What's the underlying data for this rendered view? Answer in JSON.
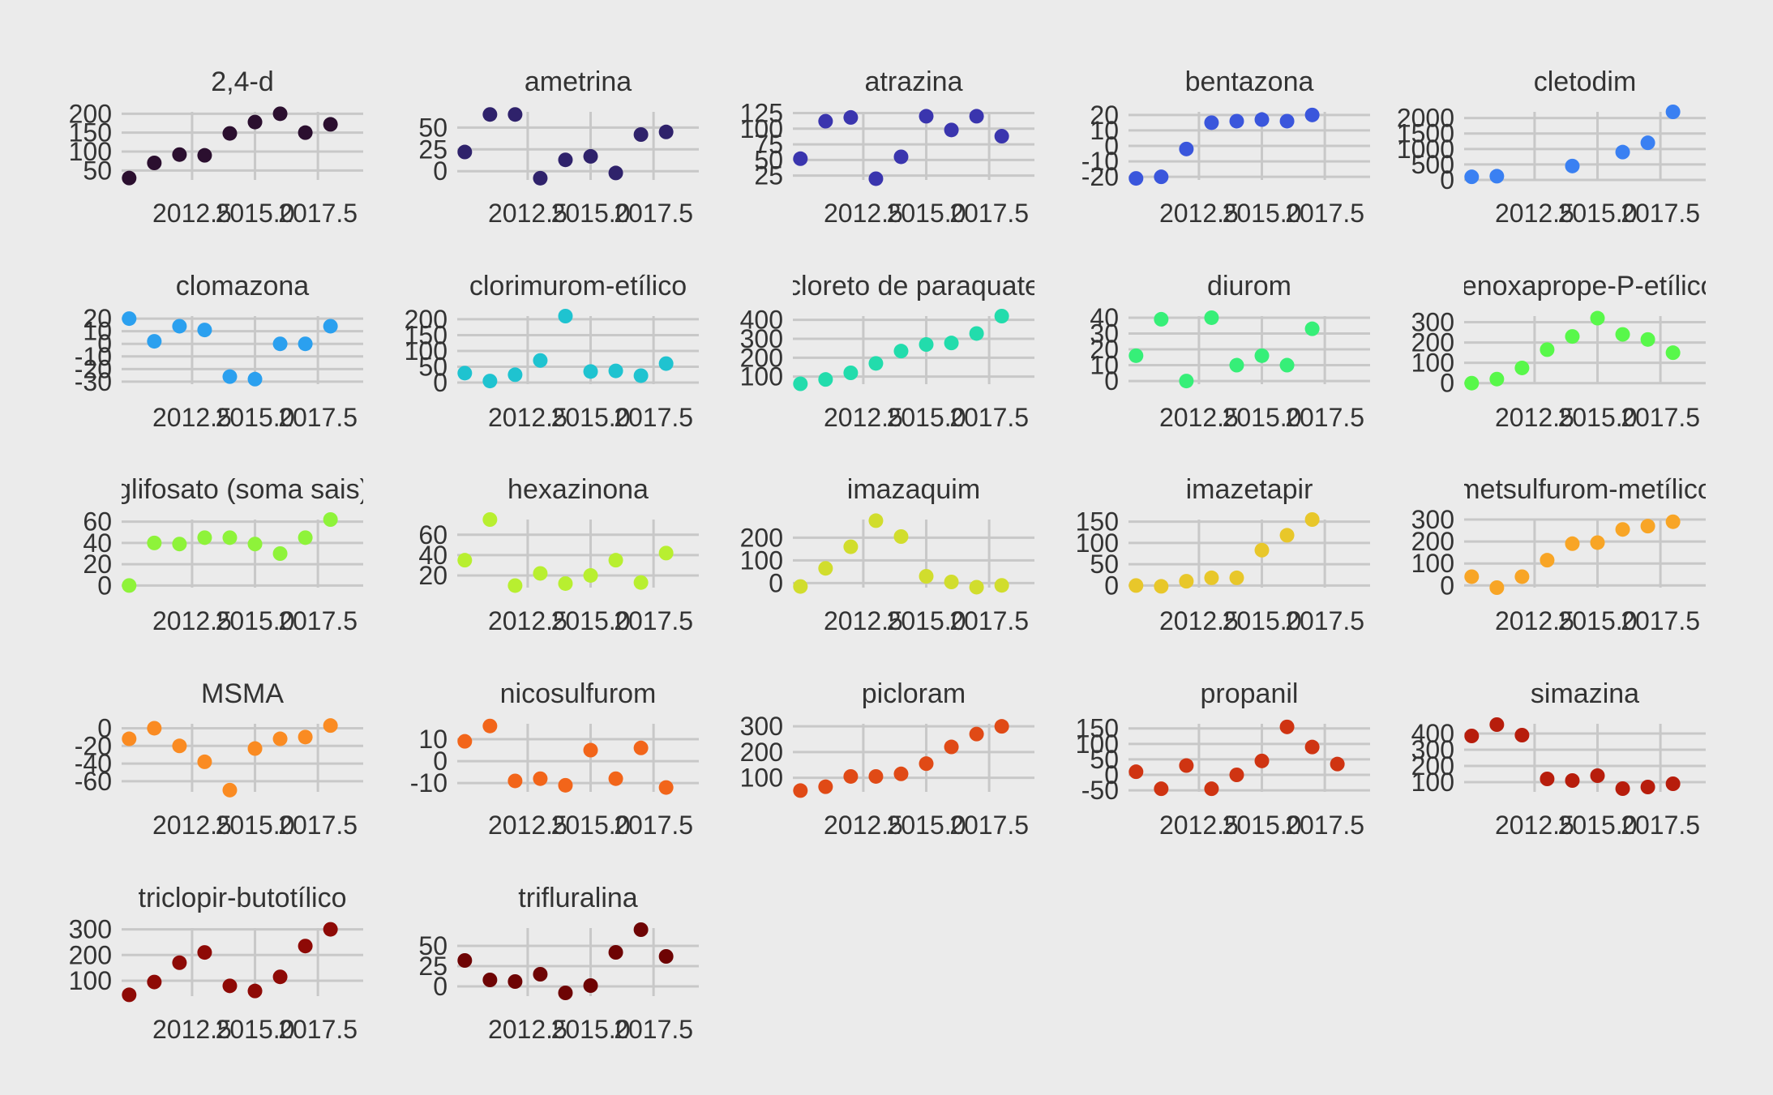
{
  "chart_data": {
    "type": "scatter",
    "layout": "faceted small multiples, 5 columns, free y scales",
    "grid": true,
    "legend": "none",
    "background": "#ebebeb",
    "gridline_color": "#c8c8c8",
    "text_color": "#333333",
    "x_range": [
      2009.7,
      2019.3
    ],
    "x_ticks": [
      2012.5,
      2015,
      2017.5
    ],
    "x_tick_labels": [
      "2012.5",
      "2015.0",
      "2017.5"
    ],
    "x_gridlines": [
      2012.5,
      2015,
      2017.5
    ],
    "years": [
      2010,
      2011,
      2012,
      2013,
      2014,
      2015,
      2016,
      2017,
      2018,
      2019
    ],
    "panels": [
      {
        "title": "2,4-d",
        "color": "#2b0f2f",
        "ylim": [
          25,
          205
        ],
        "yticks": [
          "50",
          "100",
          "150",
          "200"
        ],
        "ytick_values": [
          50,
          100,
          150,
          200
        ],
        "points": [
          [
            2010,
            30
          ],
          [
            2011,
            70
          ],
          [
            2012,
            92
          ],
          [
            2013,
            90
          ],
          [
            2014,
            148
          ],
          [
            2015,
            178
          ],
          [
            2016,
            200
          ],
          [
            2017,
            150
          ],
          [
            2018,
            172
          ]
        ]
      },
      {
        "title": "ametrina",
        "color": "#2f226b",
        "ylim": [
          -10,
          68
        ],
        "yticks": [
          "0",
          "25",
          "50"
        ],
        "ytick_values": [
          0,
          25,
          50
        ],
        "points": [
          [
            2010,
            22
          ],
          [
            2011,
            65
          ],
          [
            2012,
            65
          ],
          [
            2013,
            -8
          ],
          [
            2014,
            13
          ],
          [
            2015,
            17
          ],
          [
            2016,
            -2
          ],
          [
            2017,
            42
          ],
          [
            2018,
            45
          ]
        ]
      },
      {
        "title": "atrazina",
        "color": "#3a35ae",
        "ylim": [
          18,
          127
        ],
        "yticks": [
          "25",
          "50",
          "75",
          "100",
          "125"
        ],
        "ytick_values": [
          25,
          50,
          75,
          100,
          125
        ],
        "points": [
          [
            2010,
            52
          ],
          [
            2011,
            112
          ],
          [
            2012,
            118
          ],
          [
            2013,
            20
          ],
          [
            2014,
            55
          ],
          [
            2015,
            120
          ],
          [
            2016,
            98
          ],
          [
            2017,
            120
          ],
          [
            2018,
            88
          ]
        ]
      },
      {
        "title": "bentazona",
        "color": "#3a56dc",
        "ylim": [
          -22,
          22
        ],
        "yticks": [
          "-20",
          "-10",
          "0",
          "10",
          "20"
        ],
        "ytick_values": [
          -20,
          -10,
          0,
          10,
          20
        ],
        "points": [
          [
            2010,
            -21
          ],
          [
            2011,
            -20
          ],
          [
            2012,
            -2
          ],
          [
            2013,
            15
          ],
          [
            2014,
            16
          ],
          [
            2015,
            17
          ],
          [
            2016,
            16
          ],
          [
            2017,
            20
          ]
        ]
      },
      {
        "title": "cletodim",
        "color": "#3a80f2",
        "ylim": [
          0,
          2200
        ],
        "yticks": [
          "0",
          "500",
          "1000",
          "1500",
          "2000"
        ],
        "ytick_values": [
          0,
          500,
          1000,
          1500,
          2000
        ],
        "points": [
          [
            2010,
            100
          ],
          [
            2011,
            120
          ],
          [
            2014,
            450
          ],
          [
            2016,
            900
          ],
          [
            2017,
            1200
          ],
          [
            2018,
            2200
          ]
        ]
      },
      {
        "title": "clomazona",
        "color": "#2ba0ef",
        "ylim": [
          -32,
          22
        ],
        "yticks": [
          "-30",
          "-20",
          "-10",
          "0",
          "10",
          "20"
        ],
        "ytick_values": [
          -30,
          -20,
          -10,
          0,
          10,
          20
        ],
        "points": [
          [
            2010,
            20
          ],
          [
            2011,
            2
          ],
          [
            2012,
            14
          ],
          [
            2013,
            11
          ],
          [
            2014,
            -26
          ],
          [
            2015,
            -28
          ],
          [
            2016,
            0
          ],
          [
            2017,
            0
          ],
          [
            2018,
            14
          ]
        ]
      },
      {
        "title": "clorimurom-etílico",
        "color": "#1fc3d0",
        "ylim": [
          -5,
          210
        ],
        "yticks": [
          "0",
          "50",
          "100",
          "150",
          "200"
        ],
        "ytick_values": [
          0,
          50,
          100,
          150,
          200
        ],
        "points": [
          [
            2010,
            30
          ],
          [
            2011,
            5
          ],
          [
            2012,
            25
          ],
          [
            2013,
            70
          ],
          [
            2014,
            210
          ],
          [
            2015,
            35
          ],
          [
            2016,
            37
          ],
          [
            2017,
            22
          ],
          [
            2018,
            60
          ]
        ]
      },
      {
        "title": "cloreto de paraquate",
        "color": "#22dcac",
        "ylim": [
          60,
          420
        ],
        "yticks": [
          "100",
          "200",
          "300",
          "400"
        ],
        "ytick_values": [
          100,
          200,
          300,
          400
        ],
        "points": [
          [
            2010,
            62
          ],
          [
            2011,
            85
          ],
          [
            2012,
            120
          ],
          [
            2013,
            170
          ],
          [
            2014,
            235
          ],
          [
            2015,
            270
          ],
          [
            2016,
            278
          ],
          [
            2017,
            328
          ],
          [
            2018,
            420
          ]
        ]
      },
      {
        "title": "diurom",
        "color": "#36ef78",
        "ylim": [
          -2,
          41
        ],
        "yticks": [
          "0",
          "10",
          "20",
          "30",
          "40"
        ],
        "ytick_values": [
          0,
          10,
          20,
          30,
          40
        ],
        "points": [
          [
            2010,
            16
          ],
          [
            2011,
            39
          ],
          [
            2012,
            0
          ],
          [
            2013,
            40
          ],
          [
            2014,
            10
          ],
          [
            2015,
            16
          ],
          [
            2016,
            10
          ],
          [
            2017,
            33
          ]
        ]
      },
      {
        "title": "fenoxaprope-P-etílico",
        "color": "#58f84a",
        "ylim": [
          -5,
          330
        ],
        "yticks": [
          "0",
          "100",
          "200",
          "300"
        ],
        "ytick_values": [
          0,
          100,
          200,
          300
        ],
        "points": [
          [
            2010,
            0
          ],
          [
            2011,
            20
          ],
          [
            2012,
            75
          ],
          [
            2013,
            165
          ],
          [
            2014,
            230
          ],
          [
            2015,
            320
          ],
          [
            2016,
            240
          ],
          [
            2017,
            215
          ],
          [
            2018,
            150
          ]
        ]
      },
      {
        "title": "glifosato (soma sais)",
        "color": "#8ef33a",
        "ylim": [
          -2,
          62
        ],
        "yticks": [
          "0",
          "20",
          "40",
          "60"
        ],
        "ytick_values": [
          0,
          20,
          40,
          60
        ],
        "points": [
          [
            2010,
            0
          ],
          [
            2011,
            40
          ],
          [
            2012,
            39
          ],
          [
            2013,
            45
          ],
          [
            2014,
            45
          ],
          [
            2015,
            39
          ],
          [
            2016,
            30
          ],
          [
            2017,
            45
          ],
          [
            2018,
            62
          ]
        ]
      },
      {
        "title": "hexazinona",
        "color": "#b8ef30",
        "ylim": [
          8,
          75
        ],
        "yticks": [
          "20",
          "40",
          "60"
        ],
        "ytick_values": [
          20,
          40,
          60
        ],
        "points": [
          [
            2010,
            35
          ],
          [
            2011,
            75
          ],
          [
            2012,
            10
          ],
          [
            2013,
            22
          ],
          [
            2014,
            12
          ],
          [
            2015,
            20
          ],
          [
            2016,
            35
          ],
          [
            2017,
            13
          ],
          [
            2018,
            42
          ]
        ]
      },
      {
        "title": "imazaquim",
        "color": "#d1dd2d",
        "ylim": [
          -20,
          280
        ],
        "yticks": [
          "0",
          "100",
          "200"
        ],
        "ytick_values": [
          0,
          100,
          200
        ],
        "points": [
          [
            2010,
            -15
          ],
          [
            2011,
            65
          ],
          [
            2012,
            160
          ],
          [
            2013,
            275
          ],
          [
            2014,
            205
          ],
          [
            2015,
            30
          ],
          [
            2016,
            5
          ],
          [
            2017,
            -18
          ],
          [
            2018,
            -10
          ]
        ]
      },
      {
        "title": "imazetapir",
        "color": "#e8c72a",
        "ylim": [
          -5,
          155
        ],
        "yticks": [
          "0",
          "50",
          "100",
          "150"
        ],
        "ytick_values": [
          0,
          50,
          100,
          150
        ],
        "points": [
          [
            2010,
            0
          ],
          [
            2011,
            -2
          ],
          [
            2012,
            10
          ],
          [
            2013,
            18
          ],
          [
            2014,
            18
          ],
          [
            2015,
            83
          ],
          [
            2016,
            118
          ],
          [
            2017,
            155
          ]
        ]
      },
      {
        "title": "metsulfurom-metílico",
        "color": "#f8a526",
        "ylim": [
          -10,
          300
        ],
        "yticks": [
          "0",
          "100",
          "200",
          "300"
        ],
        "ytick_values": [
          0,
          100,
          200,
          300
        ],
        "points": [
          [
            2010,
            40
          ],
          [
            2011,
            -10
          ],
          [
            2012,
            40
          ],
          [
            2013,
            115
          ],
          [
            2014,
            190
          ],
          [
            2015,
            195
          ],
          [
            2016,
            255
          ],
          [
            2017,
            270
          ],
          [
            2018,
            290
          ]
        ]
      },
      {
        "title": "MSMA",
        "color": "#fa8b22",
        "ylim": [
          -72,
          5
        ],
        "yticks": [
          "-60",
          "-40",
          "-20",
          "0"
        ],
        "ytick_values": [
          -60,
          -40,
          -20,
          0
        ],
        "points": [
          [
            2010,
            -12
          ],
          [
            2011,
            0
          ],
          [
            2012,
            -20
          ],
          [
            2013,
            -38
          ],
          [
            2014,
            -70
          ],
          [
            2015,
            -23
          ],
          [
            2016,
            -12
          ],
          [
            2017,
            -10
          ],
          [
            2018,
            3
          ]
        ]
      },
      {
        "title": "nicosulfurom",
        "color": "#f2651a",
        "ylim": [
          -14,
          17
        ],
        "yticks": [
          "-10",
          "0",
          "10"
        ],
        "ytick_values": [
          -10,
          0,
          10
        ],
        "points": [
          [
            2010,
            9
          ],
          [
            2011,
            16
          ],
          [
            2012,
            -9
          ],
          [
            2013,
            -8
          ],
          [
            2014,
            -11
          ],
          [
            2015,
            5
          ],
          [
            2016,
            -8
          ],
          [
            2017,
            6
          ],
          [
            2018,
            -12
          ]
        ]
      },
      {
        "title": "picloram",
        "color": "#e04a16",
        "ylim": [
          45,
          310
        ],
        "yticks": [
          "100",
          "200",
          "300"
        ],
        "ytick_values": [
          100,
          200,
          300
        ],
        "points": [
          [
            2010,
            50
          ],
          [
            2011,
            65
          ],
          [
            2012,
            105
          ],
          [
            2013,
            105
          ],
          [
            2014,
            115
          ],
          [
            2015,
            155
          ],
          [
            2016,
            220
          ],
          [
            2017,
            270
          ],
          [
            2018,
            300
          ]
        ]
      },
      {
        "title": "propanil",
        "color": "#cf3412",
        "ylim": [
          -55,
          165
        ],
        "yticks": [
          "-50",
          "0",
          "50",
          "100",
          "150"
        ],
        "ytick_values": [
          -50,
          0,
          50,
          100,
          150
        ],
        "points": [
          [
            2010,
            10
          ],
          [
            2011,
            -45
          ],
          [
            2012,
            30
          ],
          [
            2013,
            -45
          ],
          [
            2014,
            0
          ],
          [
            2015,
            45
          ],
          [
            2016,
            155
          ],
          [
            2017,
            90
          ],
          [
            2018,
            35
          ]
        ]
      },
      {
        "title": "simazina",
        "color": "#b71d0c",
        "ylim": [
          40,
          460
        ],
        "yticks": [
          "100",
          "200",
          "300",
          "400"
        ],
        "ytick_values": [
          100,
          200,
          300,
          400
        ],
        "points": [
          [
            2010,
            385
          ],
          [
            2011,
            455
          ],
          [
            2012,
            390
          ],
          [
            2013,
            120
          ],
          [
            2014,
            110
          ],
          [
            2015,
            140
          ],
          [
            2016,
            60
          ],
          [
            2017,
            70
          ],
          [
            2018,
            90
          ]
        ]
      },
      {
        "title": "triclopir-butotílico",
        "color": "#8e0a06",
        "ylim": [
          40,
          305
        ],
        "yticks": [
          "100",
          "200",
          "300"
        ],
        "ytick_values": [
          100,
          200,
          300
        ],
        "points": [
          [
            2010,
            45
          ],
          [
            2011,
            95
          ],
          [
            2012,
            170
          ],
          [
            2013,
            210
          ],
          [
            2014,
            80
          ],
          [
            2015,
            60
          ],
          [
            2016,
            115
          ],
          [
            2017,
            235
          ],
          [
            2018,
            300
          ]
        ]
      },
      {
        "title": "trifluralina",
        "color": "#6e0404",
        "ylim": [
          -12,
          72
        ],
        "yticks": [
          "0",
          "25",
          "50"
        ],
        "ytick_values": [
          0,
          25,
          50
        ],
        "points": [
          [
            2010,
            32
          ],
          [
            2011,
            8
          ],
          [
            2012,
            6
          ],
          [
            2013,
            15
          ],
          [
            2014,
            -8
          ],
          [
            2015,
            1
          ],
          [
            2016,
            42
          ],
          [
            2017,
            70
          ],
          [
            2018,
            37
          ]
        ]
      }
    ]
  }
}
